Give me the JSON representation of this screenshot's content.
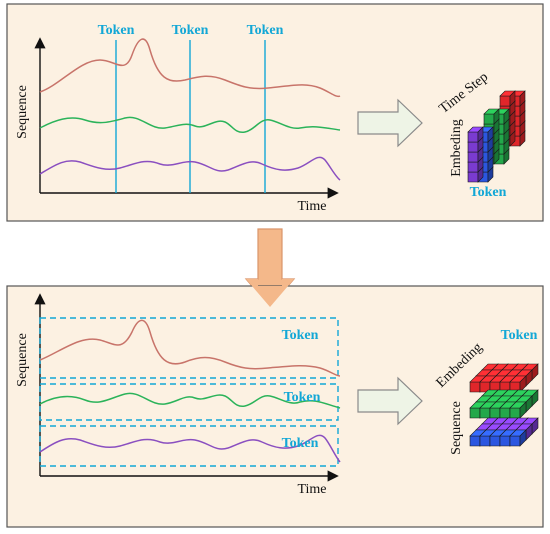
{
  "colors": {
    "panel_fill": "#fcf1e2",
    "panel_border": "#555555",
    "token_blue": "#12a7d6",
    "series_red": "#c8746a",
    "series_green": "#2bb35a",
    "series_purple": "#8a4fc0",
    "cube_red": "#e0262a",
    "cube_green": "#23a84a",
    "cube_purple": "#7a3bd0",
    "cube_blue": "#2b56e0",
    "arrow_fill": "#eef4e6",
    "down_arrow_fill": "#f4b88a"
  },
  "top_panel": {
    "token_labels": [
      "Token",
      "Token",
      "Token"
    ],
    "y_axis_label": "Sequence",
    "x_axis_label": "Time",
    "cube": {
      "time_step_label": "Time Step",
      "embedding_label": "Embeding",
      "token_label": "Token"
    }
  },
  "bottom_panel": {
    "token_labels": [
      "Token",
      "Token",
      "Token"
    ],
    "y_axis_label": "Sequence",
    "x_axis_label": "Time",
    "cube": {
      "embedding_label": "Embeding",
      "token_label": "Token",
      "sequence_label": "Sequence"
    }
  }
}
